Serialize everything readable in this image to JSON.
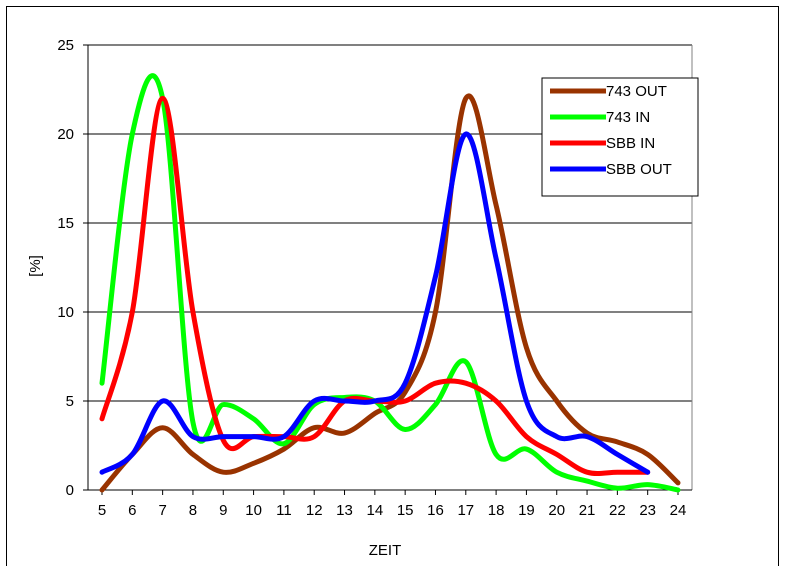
{
  "chart_data": {
    "type": "line",
    "title": "",
    "xlabel": "ZEIT",
    "ylabel": "[%]",
    "x": [
      5,
      6,
      7,
      8,
      9,
      10,
      11,
      12,
      13,
      14,
      15,
      16,
      17,
      18,
      19,
      20,
      21,
      22,
      23,
      24
    ],
    "xlim": [
      5,
      24
    ],
    "ylim": [
      0,
      25
    ],
    "yticks": [
      0,
      5,
      10,
      15,
      20,
      25
    ],
    "grid": "horizontal",
    "legend_position": "top-right",
    "series": [
      {
        "name": "743 OUT",
        "color": "#993300",
        "values": [
          0,
          2,
          3.5,
          2,
          1,
          1.5,
          2.3,
          3.5,
          3.2,
          4.3,
          5.5,
          10,
          22,
          16,
          8,
          5,
          3.2,
          2.7,
          2,
          0.4
        ]
      },
      {
        "name": "743 IN",
        "color": "#00ff00",
        "values": [
          6,
          20,
          22,
          3.8,
          4.8,
          4,
          2.6,
          4.8,
          5.2,
          5,
          3.4,
          4.8,
          7.2,
          2,
          2.3,
          1,
          0.5,
          0.1,
          0.3,
          0
        ]
      },
      {
        "name": "SBB IN",
        "color": "#ff0000",
        "values": [
          4,
          10,
          22,
          10,
          2.8,
          3,
          3,
          3,
          5,
          5,
          5,
          6,
          6,
          5,
          3,
          2,
          1,
          1,
          1,
          null
        ]
      },
      {
        "name": "SBB OUT",
        "color": "#0000ff",
        "values": [
          1,
          2,
          5,
          3,
          3,
          3,
          3,
          5,
          5,
          5,
          6,
          12,
          20,
          13,
          5,
          3,
          3,
          2,
          1,
          null
        ]
      }
    ]
  }
}
